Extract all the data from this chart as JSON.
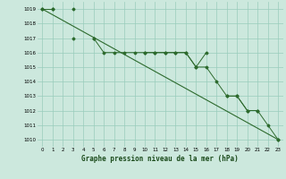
{
  "title": "Graphe pression niveau de la mer (hPa)",
  "background_color": "#cce8dd",
  "grid_color": "#99ccbb",
  "line_color": "#2d6a2d",
  "xlim": [
    -0.5,
    23.5
  ],
  "ylim": [
    1009.5,
    1019.5
  ],
  "yticks": [
    1010,
    1011,
    1012,
    1013,
    1014,
    1015,
    1016,
    1017,
    1018,
    1019
  ],
  "xticks": [
    0,
    1,
    2,
    3,
    4,
    5,
    6,
    7,
    8,
    9,
    10,
    11,
    12,
    13,
    14,
    15,
    16,
    17,
    18,
    19,
    20,
    21,
    22,
    23
  ],
  "series1": [
    1019,
    1019,
    null,
    1019,
    null,
    1017,
    null,
    null,
    null,
    null,
    1016,
    1016,
    1016,
    1016,
    1016,
    1015,
    1016,
    null,
    1013,
    1013,
    1012,
    1012,
    1011,
    1010
  ],
  "series2": [
    1019,
    1019,
    null,
    1017,
    null,
    1017,
    1016,
    1016,
    1016,
    1016,
    1016,
    1016,
    1016,
    1016,
    1016,
    1015,
    1015,
    1014,
    1013,
    1013,
    1012,
    1012,
    null,
    1010
  ],
  "trend_x": [
    0,
    23
  ],
  "trend_y": [
    1019,
    1010
  ]
}
